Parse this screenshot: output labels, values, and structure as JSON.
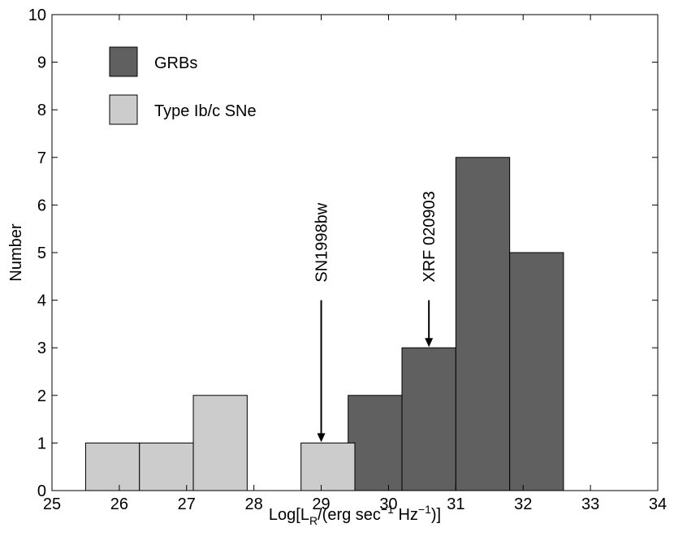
{
  "chart_data": {
    "type": "bar",
    "xlabel": "Log[L_R/(erg sec^-1 Hz^-1)]",
    "xlabel_parts": {
      "prefix": "Log[L",
      "sub_r": "R",
      "mid": "/(erg sec",
      "sup1": "−1",
      "mid2": " Hz",
      "sup2": "−1",
      "suffix": ")]"
    },
    "ylabel": "Number",
    "xlim": [
      25,
      34
    ],
    "ylim": [
      0,
      10
    ],
    "x_ticks": [
      25,
      26,
      27,
      28,
      29,
      30,
      31,
      32,
      33,
      34
    ],
    "y_ticks": [
      0,
      1,
      2,
      3,
      4,
      5,
      6,
      7,
      8,
      9,
      10
    ],
    "grid": false,
    "legend_position": "top-left",
    "series": [
      {
        "name": "GRBs",
        "color": "#606060",
        "bars": [
          {
            "x0": 29.4,
            "x1": 30.2,
            "value": 2
          },
          {
            "x0": 30.2,
            "x1": 31.0,
            "value": 3
          },
          {
            "x0": 31.0,
            "x1": 31.8,
            "value": 7
          },
          {
            "x0": 31.8,
            "x1": 32.6,
            "value": 5
          }
        ]
      },
      {
        "name": "Type Ib/c SNe",
        "color": "#cccccc",
        "bars": [
          {
            "x0": 25.5,
            "x1": 26.3,
            "value": 1
          },
          {
            "x0": 26.3,
            "x1": 27.1,
            "value": 1
          },
          {
            "x0": 27.1,
            "x1": 27.9,
            "value": 2
          },
          {
            "x0": 28.7,
            "x1": 29.5,
            "value": 1
          }
        ]
      }
    ],
    "annotations": [
      {
        "label": "SN1998bw",
        "x": 29.0,
        "arrow_from": 4.0,
        "arrow_to": 1.0
      },
      {
        "label": "XRF 020903",
        "x": 30.6,
        "arrow_from": 4.0,
        "arrow_to": 3.0
      }
    ]
  }
}
